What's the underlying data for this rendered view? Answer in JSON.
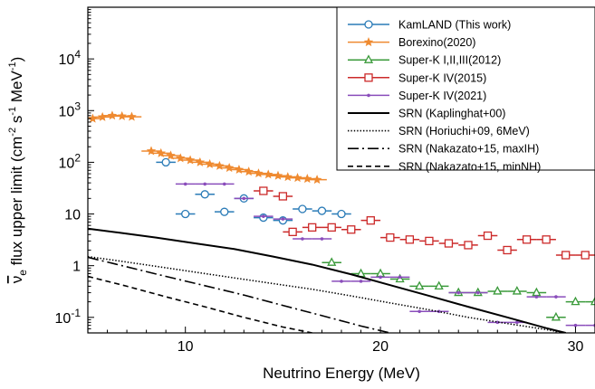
{
  "chart_data": {
    "type": "scatter",
    "xlabel": "Neutrino Energy (MeV)",
    "ylabel_parts": [
      "ν",
      "e",
      " flux upper limit (cm",
      "-2",
      " s",
      "-1",
      " MeV",
      "-1",
      ")"
    ],
    "xlim": [
      5,
      31
    ],
    "ylim": [
      0.05,
      100000
    ],
    "y_scale": "log",
    "grid": false,
    "legend_position": "top-right",
    "x_ticks": [
      10,
      20,
      30
    ],
    "x_tick_labels": [
      "10",
      "20",
      "30"
    ],
    "y_ticks": [
      {
        "value": 0.1,
        "mant": "10",
        "exp": "-1"
      },
      {
        "value": 1,
        "mant": "1",
        "exp": ""
      },
      {
        "value": 10,
        "mant": "10",
        "exp": ""
      },
      {
        "value": 100,
        "mant": "10",
        "exp": "2"
      },
      {
        "value": 1000,
        "mant": "10",
        "exp": "3"
      },
      {
        "value": 10000,
        "mant": "10",
        "exp": "4"
      }
    ],
    "series": [
      {
        "name": "KamLAND (This work)",
        "kind": "points",
        "color": "#2a7bb7",
        "marker": "circle",
        "points": [
          [
            9.0,
            100
          ],
          [
            10.0,
            10
          ],
          [
            11.0,
            24
          ],
          [
            12.0,
            11
          ],
          [
            13.0,
            20
          ],
          [
            14.0,
            8.5
          ],
          [
            15.0,
            7.5
          ],
          [
            16.0,
            12.5
          ],
          [
            17.0,
            11.5
          ],
          [
            18.0,
            10
          ]
        ]
      },
      {
        "name": "Borexino(2020)",
        "kind": "points",
        "color": "#ef8a30",
        "marker": "star",
        "points": [
          [
            5.25,
            700
          ],
          [
            5.75,
            750
          ],
          [
            6.25,
            800
          ],
          [
            6.75,
            780
          ],
          [
            7.25,
            760
          ],
          [
            8.25,
            165
          ],
          [
            8.75,
            150
          ],
          [
            9.25,
            135
          ],
          [
            9.75,
            120
          ],
          [
            10.25,
            110
          ],
          [
            10.75,
            100
          ],
          [
            11.25,
            92
          ],
          [
            11.75,
            85
          ],
          [
            12.25,
            78
          ],
          [
            12.75,
            72
          ],
          [
            13.25,
            66
          ],
          [
            13.75,
            61
          ],
          [
            14.25,
            58
          ],
          [
            14.75,
            55
          ],
          [
            15.25,
            52
          ],
          [
            15.75,
            50
          ],
          [
            16.25,
            48
          ],
          [
            16.75,
            46
          ]
        ]
      },
      {
        "name": "Super-K I,II,III(2012)",
        "kind": "points",
        "color": "#3a9a3a",
        "marker": "triangle",
        "points": [
          [
            17.5,
            1.15
          ],
          [
            19.0,
            0.7
          ],
          [
            20.0,
            0.7
          ],
          [
            21.0,
            0.55
          ],
          [
            22.0,
            0.4
          ],
          [
            23.0,
            0.4
          ],
          [
            24.0,
            0.3
          ],
          [
            25.0,
            0.3
          ],
          [
            26.0,
            0.32
          ],
          [
            27.0,
            0.32
          ],
          [
            28.0,
            0.3
          ],
          [
            29.0,
            0.1
          ],
          [
            30.0,
            0.2
          ],
          [
            31.0,
            0.2
          ]
        ]
      },
      {
        "name": "Super-K IV(2015)",
        "kind": "points",
        "color": "#cc2a2a",
        "marker": "square",
        "points": [
          [
            14.0,
            28
          ],
          [
            15.0,
            22
          ],
          [
            15.5,
            4.5
          ],
          [
            16.5,
            5.5
          ],
          [
            17.5,
            5.5
          ],
          [
            18.5,
            5
          ],
          [
            19.5,
            7.5
          ],
          [
            20.5,
            3.5
          ],
          [
            21.5,
            3.2
          ],
          [
            22.5,
            3
          ],
          [
            23.5,
            2.7
          ],
          [
            24.5,
            2.5
          ],
          [
            25.5,
            3.8
          ],
          [
            26.5,
            2
          ],
          [
            27.5,
            3.2
          ],
          [
            28.5,
            3.2
          ],
          [
            29.5,
            1.6
          ],
          [
            30.5,
            1.6
          ]
        ]
      },
      {
        "name": "Super-K IV(2021)",
        "kind": "points",
        "color": "#8a4dbb",
        "marker": "dot",
        "points": [
          [
            10.0,
            38
          ],
          [
            11.0,
            38
          ],
          [
            12.0,
            38
          ],
          [
            13.0,
            20
          ],
          [
            14.0,
            9
          ],
          [
            15.0,
            8
          ],
          [
            16.0,
            3.3
          ],
          [
            17.0,
            3.3
          ],
          [
            18.0,
            0.5
          ],
          [
            19.0,
            0.5
          ],
          [
            20.0,
            0.6
          ],
          [
            21.0,
            0.6
          ],
          [
            22.0,
            0.13
          ],
          [
            23.0,
            0.13
          ],
          [
            24.0,
            0.3
          ],
          [
            25.0,
            0.3
          ],
          [
            26.0,
            0.08
          ],
          [
            27.0,
            0.08
          ],
          [
            28.0,
            0.25
          ],
          [
            29.0,
            0.25
          ],
          [
            30.0,
            0.07
          ],
          [
            31.0,
            0.07
          ]
        ]
      },
      {
        "name": "SRN (Kaplinghat+00)",
        "kind": "line",
        "color": "#000000",
        "dash": "",
        "points": [
          [
            5,
            5.2
          ],
          [
            6.5,
            4.4
          ],
          [
            8.5,
            3.5
          ],
          [
            10.5,
            2.7
          ],
          [
            12.5,
            2.1
          ],
          [
            14.5,
            1.5
          ],
          [
            16.5,
            1.05
          ],
          [
            18.5,
            0.68
          ],
          [
            20.5,
            0.42
          ],
          [
            22.5,
            0.26
          ],
          [
            24.5,
            0.16
          ],
          [
            26.5,
            0.1
          ],
          [
            28.5,
            0.062
          ],
          [
            29.5,
            0.05
          ]
        ]
      },
      {
        "name": "SRN (Horiuchi+09, 6MeV)",
        "kind": "line",
        "color": "#000000",
        "dash": "1.4 2",
        "points": [
          [
            5,
            1.5
          ],
          [
            6.5,
            1.25
          ],
          [
            8.5,
            0.97
          ],
          [
            10.5,
            0.75
          ],
          [
            12.5,
            0.58
          ],
          [
            14.5,
            0.45
          ],
          [
            16.5,
            0.35
          ],
          [
            18.5,
            0.26
          ],
          [
            20.5,
            0.19
          ],
          [
            22.5,
            0.14
          ],
          [
            24.5,
            0.1
          ],
          [
            26.5,
            0.076
          ],
          [
            28.5,
            0.058
          ],
          [
            29.5,
            0.05
          ]
        ]
      },
      {
        "name": "SRN (Nakazato+15, maxIH)",
        "kind": "line",
        "color": "#000000",
        "dash": "12 4 2 4",
        "points": [
          [
            5,
            1.45
          ],
          [
            7,
            0.95
          ],
          [
            9,
            0.62
          ],
          [
            11,
            0.41
          ],
          [
            13,
            0.27
          ],
          [
            15,
            0.17
          ],
          [
            17,
            0.108
          ],
          [
            19,
            0.068
          ],
          [
            20.5,
            0.05
          ]
        ]
      },
      {
        "name": "SRN (Nakazato+15, minNH)",
        "kind": "line",
        "color": "#000000",
        "dash": "6 4",
        "points": [
          [
            5,
            0.62
          ],
          [
            7,
            0.4
          ],
          [
            9,
            0.25
          ],
          [
            11,
            0.16
          ],
          [
            13,
            0.1
          ],
          [
            15,
            0.065
          ],
          [
            16.5,
            0.05
          ]
        ]
      }
    ]
  }
}
